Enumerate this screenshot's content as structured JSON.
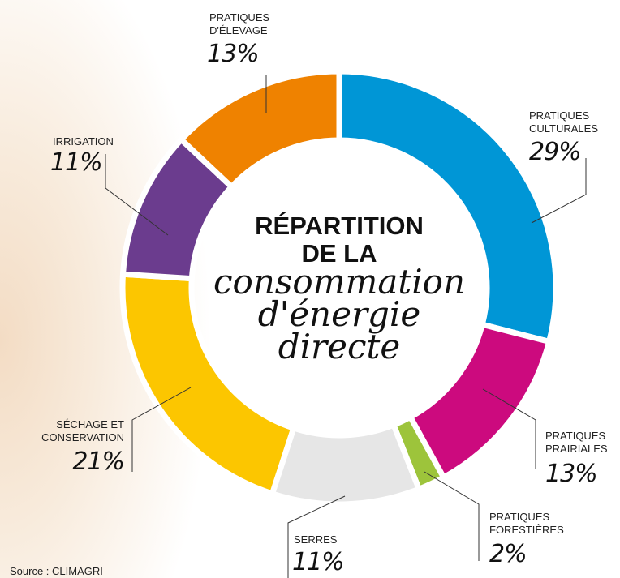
{
  "chart_data": {
    "type": "donut",
    "title": "RÉPARTITION\nDE LA",
    "subtitle": "consommation\nd'énergie\ndirecte",
    "categories": [
      "PRATIQUES\nCULTURALES",
      "PRATIQUES\nPRAIRIALES",
      "PRATIQUES\nFORESTIÈRES",
      "SERRES",
      "SÉCHAGE ET\nCONSERVATION",
      "IRRIGATION",
      "PRATIQUES\nD'ÉLEVAGE"
    ],
    "values": [
      29,
      13,
      2,
      11,
      21,
      11,
      13
    ],
    "value_labels": [
      "29%",
      "13%",
      "2%",
      "11%",
      "21%",
      "11%",
      "13%"
    ],
    "colors": [
      "#0096d6",
      "#cc0a7e",
      "#9dc43b",
      "#e6e6e6",
      "#fcc600",
      "#6b3c8e",
      "#ef8200"
    ],
    "source": "Source : CLIMAGRI"
  }
}
